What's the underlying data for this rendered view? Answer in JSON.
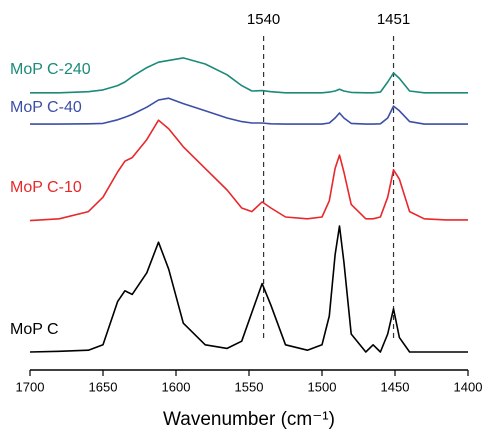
{
  "chart_data": {
    "type": "line",
    "xlabel": "Wavenumber (cm⁻¹)",
    "xlim": [
      1700,
      1400
    ],
    "xticks": [
      1700,
      1650,
      1600,
      1550,
      1500,
      1450,
      1400
    ],
    "ylim": [
      0,
      100
    ],
    "markers": [
      1540,
      1451
    ],
    "x": [
      1700,
      1680,
      1660,
      1650,
      1640,
      1635,
      1630,
      1620,
      1612,
      1605,
      1595,
      1580,
      1565,
      1555,
      1548,
      1541,
      1535,
      1525,
      1510,
      1500,
      1495,
      1491,
      1488,
      1485,
      1480,
      1470,
      1465,
      1460,
      1455,
      1451,
      1447,
      1440,
      1430,
      1415,
      1400
    ],
    "series": [
      {
        "name": "MoP C-240",
        "color": "#1b8a7b",
        "values": [
          77,
          77,
          77.3,
          77.8,
          79,
          80,
          81.5,
          84,
          85.5,
          86,
          86.7,
          85,
          82,
          79,
          77.5,
          77.6,
          77.3,
          77,
          77,
          77,
          77.2,
          77.5,
          78,
          77.5,
          77.1,
          77,
          77,
          77.2,
          80,
          82.5,
          81,
          77.5,
          77,
          77,
          77
        ]
      },
      {
        "name": "MoP C-40",
        "color": "#3b4fa6",
        "values": [
          68.3,
          68.3,
          68.4,
          68.5,
          69.5,
          70.2,
          71,
          73,
          75,
          75.5,
          74,
          72,
          70,
          69,
          68.6,
          68.6,
          68.4,
          68.3,
          68.3,
          68.3,
          68.6,
          70,
          71.4,
          70,
          68.5,
          68.3,
          68.3,
          68.4,
          70,
          73.3,
          72,
          69,
          68.3,
          68.3,
          68.3
        ]
      },
      {
        "name": "MoP C-10",
        "color": "#e8282b",
        "values": [
          41.5,
          42,
          44,
          48,
          55,
          58,
          59,
          64,
          69.4,
          67,
          62,
          56,
          50,
          45,
          44,
          46.7,
          45,
          42.5,
          42,
          42.5,
          47,
          56,
          59.7,
          55,
          46,
          42,
          42,
          42.5,
          48,
          55.6,
          53,
          44,
          42,
          41.7,
          41.7
        ]
      },
      {
        "name": "MoP C",
        "color": "#000000",
        "values": [
          5,
          5.2,
          5.5,
          7,
          19,
          22,
          21,
          27,
          35.5,
          28,
          13,
          7,
          6,
          8,
          16,
          24,
          18,
          7,
          5.5,
          7,
          15,
          32,
          40,
          30,
          10,
          5,
          7,
          5,
          10,
          17,
          9,
          5,
          5,
          5,
          5
        ]
      }
    ]
  }
}
